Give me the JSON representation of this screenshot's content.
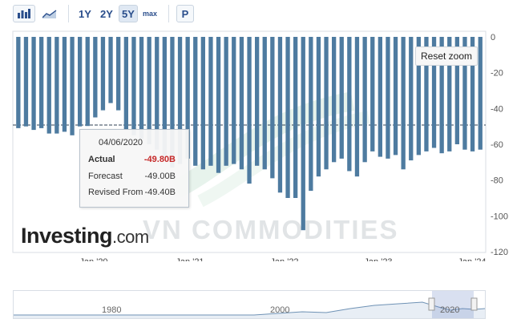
{
  "toolbar": {
    "bar_icon": "bar-chart-icon",
    "area_icon": "area-chart-icon",
    "ranges": [
      "1Y",
      "2Y",
      "5Y",
      "max"
    ],
    "active_range": "5Y",
    "print_label": "P"
  },
  "reset_zoom_label": "Reset zoom",
  "tooltip": {
    "date": "04/06/2020",
    "actual_label": "Actual",
    "actual_value": "-49.80B",
    "forecast_label": "Forecast",
    "forecast_value": "-49.00B",
    "revised_label": "Revised From",
    "revised_value": "-49.40B"
  },
  "branding": {
    "logo_main": "Investing",
    "logo_suffix": ".com",
    "watermark": "VN COMMODITIES"
  },
  "navigator": {
    "labels": [
      "1980",
      "2000",
      "2020"
    ]
  },
  "colors": {
    "bar": "#4e7ba0",
    "actual_value": "#c62828"
  },
  "chart_data": {
    "type": "bar",
    "x_tick_labels": [
      "Jan '20",
      "Jan '21",
      "Jan '22",
      "Jan '23",
      "Jan '24"
    ],
    "y_ticks": [
      0,
      -20,
      -40,
      -60,
      -80,
      -100,
      -120
    ],
    "ylim": [
      -120,
      0
    ],
    "values": [
      -51,
      -50,
      -52,
      -51,
      -54,
      -54,
      -53,
      -55,
      -50,
      -49.8,
      -45,
      -41,
      -37,
      -41,
      -52,
      -55,
      -57,
      -60,
      -63,
      -67,
      -73,
      -71,
      -68,
      -72,
      -74,
      -72,
      -76,
      -72,
      -71,
      -74,
      -82,
      -72,
      -74,
      -79,
      -87,
      -90,
      -90,
      -108,
      -86,
      -78,
      -74,
      -70,
      -68,
      -75,
      -78,
      -70,
      -64,
      -67,
      -68,
      -66,
      -74,
      -69,
      -66,
      -64,
      -62,
      -65,
      -64,
      -60,
      -63,
      -64,
      -63
    ]
  }
}
